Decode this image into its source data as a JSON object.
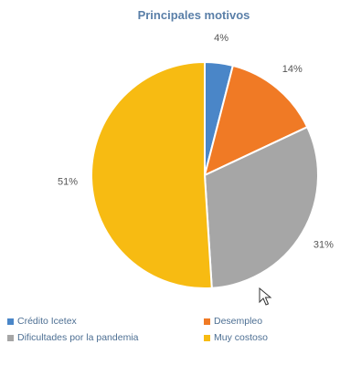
{
  "chart_data": {
    "type": "pie",
    "title": "Principales motivos",
    "slices": [
      {
        "label": "Crédito Icetex",
        "value": 4,
        "display": "4%",
        "color": "#4a86c8"
      },
      {
        "label": "Desempleo",
        "value": 14,
        "display": "14%",
        "color": "#f07a25"
      },
      {
        "label": "Dificultades por la pandemia",
        "value": 31,
        "display": "31%",
        "color": "#a6a6a6"
      },
      {
        "label": "Muy costoso",
        "value": 51,
        "display": "51%",
        "color": "#f7bb12"
      }
    ],
    "legend_position": "bottom"
  },
  "cursor_icon": "mouse-pointer-icon"
}
